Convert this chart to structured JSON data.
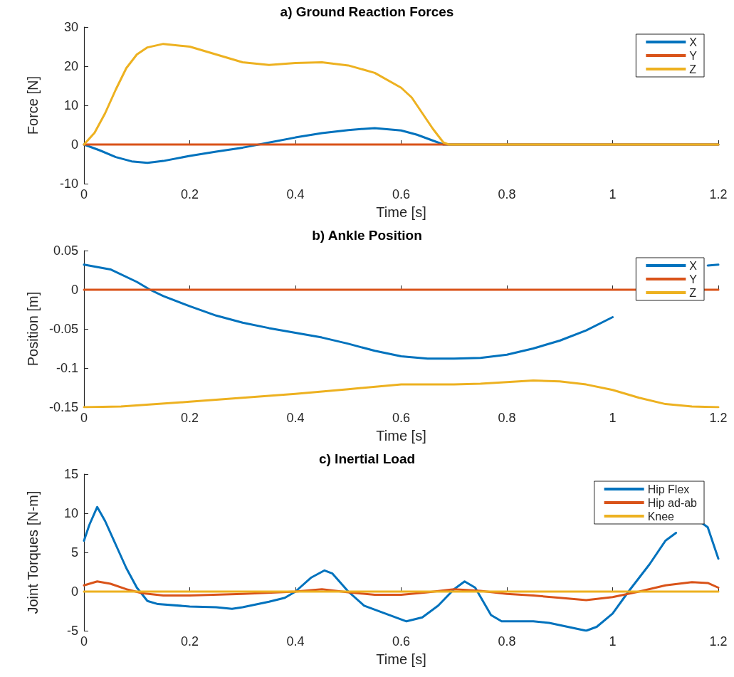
{
  "chart_data": [
    {
      "type": "line",
      "title": "a) Ground Reaction Forces",
      "xlabel": "Time [s]",
      "ylabel": "Force [N]",
      "xlim": [
        0,
        1.2
      ],
      "xticks": [
        0,
        0.2,
        0.4,
        0.6,
        0.8,
        1,
        1.2
      ],
      "ylim": [
        -10,
        30
      ],
      "yticks": [
        -10,
        0,
        10,
        20,
        30
      ],
      "legend": "top right",
      "marker": "none",
      "line_style": "solid",
      "series": [
        {
          "name": "X",
          "color": "#0072bd",
          "x": [
            0,
            0.03,
            0.06,
            0.09,
            0.12,
            0.15,
            0.2,
            0.25,
            0.3,
            0.35,
            0.4,
            0.45,
            0.5,
            0.55,
            0.6,
            0.63,
            0.66,
            0.68,
            1.2
          ],
          "values": [
            0,
            -1.5,
            -3.2,
            -4.3,
            -4.7,
            -4.2,
            -2.9,
            -1.8,
            -0.8,
            0.5,
            1.8,
            2.9,
            3.7,
            4.2,
            3.6,
            2.5,
            1,
            0,
            0
          ]
        },
        {
          "name": "Y",
          "color": "#d95319",
          "x": [
            0,
            1.2
          ],
          "values": [
            0,
            0
          ]
        },
        {
          "name": "Z",
          "color": "#edb120",
          "x": [
            0,
            0.02,
            0.04,
            0.06,
            0.08,
            0.1,
            0.12,
            0.15,
            0.2,
            0.25,
            0.3,
            0.35,
            0.4,
            0.45,
            0.5,
            0.55,
            0.6,
            0.62,
            0.64,
            0.66,
            0.68,
            0.69,
            1.2
          ],
          "values": [
            0,
            3,
            8,
            14,
            19.5,
            23,
            24.8,
            25.7,
            25,
            23,
            21,
            20.3,
            20.8,
            21,
            20.2,
            18.3,
            14.5,
            12,
            8,
            4,
            0.5,
            0,
            0
          ]
        }
      ]
    },
    {
      "type": "line",
      "title": "b) Ankle Position",
      "xlabel": "Time [s]",
      "ylabel": "Position [m]",
      "xlim": [
        0,
        1.2
      ],
      "xticks": [
        0,
        0.2,
        0.4,
        0.6,
        0.8,
        1,
        1.2
      ],
      "ylim": [
        -0.15,
        0.05
      ],
      "yticks": [
        -0.15,
        -0.1,
        -0.05,
        0,
        0.05
      ],
      "legend": "top right",
      "marker": "none",
      "line_style": "solid",
      "series": [
        {
          "name": "X",
          "color": "#0072bd",
          "x": [
            0,
            0.05,
            0.1,
            0.125,
            0.15,
            0.2,
            0.25,
            0.3,
            0.35,
            0.4,
            0.45,
            0.5,
            0.55,
            0.6,
            0.65,
            0.7,
            0.75,
            0.8,
            0.85,
            0.9,
            0.95,
            1,
            1.05,
            1.1,
            1.18,
            1.2
          ],
          "values": [
            0.032,
            0.026,
            0.01,
            0,
            -0.008,
            -0.021,
            -0.033,
            -0.042,
            -0.049,
            -0.055,
            -0.061,
            -0.069,
            -0.078,
            -0.085,
            -0.088,
            -0.088,
            -0.087,
            -0.083,
            -0.075,
            -0.065,
            -0.052,
            -0.035,
            null,
            null,
            0.031,
            0.032
          ]
        },
        {
          "name": "Y",
          "color": "#d95319",
          "x": [
            0,
            1.2
          ],
          "values": [
            0,
            0
          ]
        },
        {
          "name": "Z",
          "color": "#edb120",
          "x": [
            0,
            0.07,
            0.2,
            0.3,
            0.4,
            0.5,
            0.6,
            0.7,
            0.75,
            0.8,
            0.85,
            0.9,
            0.95,
            1,
            1.05,
            1.1,
            1.15,
            1.2
          ],
          "values": [
            -0.15,
            -0.149,
            -0.143,
            -0.138,
            -0.133,
            -0.127,
            -0.121,
            -0.121,
            -0.12,
            -0.118,
            -0.116,
            -0.117,
            -0.121,
            -0.128,
            -0.138,
            -0.146,
            -0.149,
            -0.15
          ]
        }
      ]
    },
    {
      "type": "line",
      "title": "c) Inertial Load",
      "xlabel": "Time [s]",
      "ylabel": "Joint Torques [N-m]",
      "xlim": [
        0,
        1.2
      ],
      "xticks": [
        0,
        0.2,
        0.4,
        0.6,
        0.8,
        1,
        1.2
      ],
      "ylim": [
        -5,
        15
      ],
      "yticks": [
        -5,
        0,
        5,
        10,
        15
      ],
      "legend": "top right",
      "marker": "none",
      "line_style": "solid",
      "series": [
        {
          "name": "Hip Flex",
          "color": "#0072bd",
          "x": [
            0,
            0.01,
            0.025,
            0.04,
            0.06,
            0.08,
            0.1,
            0.12,
            0.14,
            0.2,
            0.25,
            0.28,
            0.3,
            0.35,
            0.38,
            0.4,
            0.43,
            0.455,
            0.47,
            0.5,
            0.53,
            0.57,
            0.61,
            0.64,
            0.67,
            0.7,
            0.72,
            0.74,
            0.77,
            0.79,
            0.85,
            0.88,
            0.95,
            0.97,
            1,
            1.03,
            1.07,
            1.1,
            1.12,
            1.14,
            1.17,
            1.18,
            1.2
          ],
          "values": [
            6.5,
            8.5,
            10.8,
            9,
            6,
            3,
            0.5,
            -1.2,
            -1.6,
            -1.9,
            -2,
            -2.2,
            -2,
            -1.3,
            -0.8,
            0,
            1.8,
            2.7,
            2.3,
            0,
            -1.8,
            -2.8,
            -3.8,
            -3.3,
            -1.8,
            0.3,
            1.3,
            0.5,
            -3,
            -3.8,
            -3.8,
            -4,
            -5,
            -4.5,
            -2.8,
            0,
            3.5,
            6.5,
            7.5,
            null,
            8.7,
            8.2,
            4.2
          ]
        },
        {
          "name": "Hip ad-ab",
          "color": "#d95319",
          "x": [
            0,
            0.025,
            0.05,
            0.08,
            0.11,
            0.15,
            0.2,
            0.3,
            0.4,
            0.45,
            0.5,
            0.55,
            0.6,
            0.65,
            0.7,
            0.75,
            0.8,
            0.85,
            0.9,
            0.95,
            1,
            1.05,
            1.1,
            1.15,
            1.18,
            1.2
          ],
          "values": [
            0.8,
            1.3,
            1,
            0.3,
            -0.2,
            -0.5,
            -0.5,
            -0.3,
            0,
            0.3,
            -0.1,
            -0.4,
            -0.4,
            -0.1,
            0.3,
            0.1,
            -0.3,
            -0.5,
            -0.8,
            -1.1,
            -0.7,
            0,
            0.8,
            1.2,
            1.1,
            0.5
          ]
        },
        {
          "name": "Knee",
          "color": "#edb120",
          "x": [
            0,
            1.2
          ],
          "values": [
            0,
            0
          ]
        }
      ]
    }
  ]
}
